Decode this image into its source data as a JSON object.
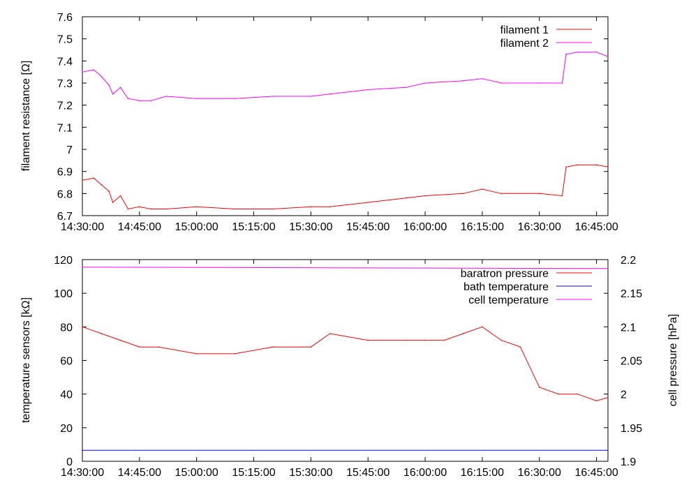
{
  "chart_data": [
    {
      "type": "line",
      "xlabel": "",
      "ylabel": "filament resistance [Ω]",
      "x_ticks": [
        "14:30:00",
        "14:45:00",
        "15:00:00",
        "15:15:00",
        "15:30:00",
        "15:45:00",
        "16:00:00",
        "16:15:00",
        "16:30:00",
        "16:45:00"
      ],
      "xlim": [
        "14:30:00",
        "16:48:00"
      ],
      "ylim": [
        6.7,
        7.6
      ],
      "y_ticks": [
        "6.7",
        "6.8",
        "6.9",
        "7",
        "7.1",
        "7.2",
        "7.3",
        "7.4",
        "7.5",
        "7.6"
      ],
      "legend_position": "top-right",
      "grid": false,
      "series": [
        {
          "name": "filament 1",
          "color": "#ff0000",
          "x": [
            "14:30:00",
            "14:33:00",
            "14:35:00",
            "14:37:00",
            "14:38:00",
            "14:40:00",
            "14:42:00",
            "14:45:00",
            "14:48:00",
            "14:52:00",
            "15:00:00",
            "15:10:00",
            "15:20:00",
            "15:30:00",
            "15:35:00",
            "15:45:00",
            "15:55:00",
            "16:00:00",
            "16:10:00",
            "16:15:00",
            "16:20:00",
            "16:30:00",
            "16:36:00",
            "16:37:00",
            "16:40:00",
            "16:45:00",
            "16:48:00"
          ],
          "values": [
            6.86,
            6.87,
            6.84,
            6.81,
            6.76,
            6.79,
            6.73,
            6.74,
            6.73,
            6.73,
            6.74,
            6.73,
            6.73,
            6.74,
            6.74,
            6.76,
            6.78,
            6.79,
            6.8,
            6.82,
            6.8,
            6.8,
            6.79,
            6.92,
            6.93,
            6.93,
            6.92
          ]
        },
        {
          "name": "filament 2",
          "color": "#ff00ff",
          "x": [
            "14:30:00",
            "14:33:00",
            "14:35:00",
            "14:37:00",
            "14:38:00",
            "14:40:00",
            "14:42:00",
            "14:45:00",
            "14:48:00",
            "14:52:00",
            "15:00:00",
            "15:10:00",
            "15:20:00",
            "15:30:00",
            "15:35:00",
            "15:45:00",
            "15:55:00",
            "16:00:00",
            "16:10:00",
            "16:15:00",
            "16:20:00",
            "16:30:00",
            "16:36:00",
            "16:37:00",
            "16:40:00",
            "16:45:00",
            "16:48:00"
          ],
          "values": [
            7.35,
            7.36,
            7.33,
            7.29,
            7.25,
            7.28,
            7.23,
            7.22,
            7.22,
            7.24,
            7.23,
            7.23,
            7.24,
            7.24,
            7.25,
            7.27,
            7.28,
            7.3,
            7.31,
            7.32,
            7.3,
            7.3,
            7.3,
            7.43,
            7.44,
            7.44,
            7.42
          ]
        }
      ]
    },
    {
      "type": "line",
      "xlabel": "",
      "ylabel": "temperature sensors [kΩ]",
      "y2label": "cell pressure [hPa]",
      "x_ticks": [
        "14:30:00",
        "14:45:00",
        "15:00:00",
        "15:15:00",
        "15:30:00",
        "15:45:00",
        "16:00:00",
        "16:15:00",
        "16:30:00",
        "16:45:00"
      ],
      "xlim": [
        "14:30:00",
        "16:48:00"
      ],
      "ylim": [
        0,
        120
      ],
      "y_ticks": [
        "0",
        "20",
        "40",
        "60",
        "80",
        "100",
        "120"
      ],
      "y2lim": [
        1.9,
        2.2
      ],
      "y2_ticks": [
        "1.9",
        "1.95",
        "2",
        "2.05",
        "2.1",
        "2.15",
        "2.2"
      ],
      "legend_position": "top-right",
      "grid": false,
      "series": [
        {
          "name": "baratron pressure",
          "color": "#ff0000",
          "axis": "y2",
          "x": [
            "14:30:00",
            "14:35:00",
            "14:40:00",
            "14:45:00",
            "14:50:00",
            "15:00:00",
            "15:10:00",
            "15:20:00",
            "15:30:00",
            "15:35:00",
            "15:45:00",
            "15:55:00",
            "16:00:00",
            "16:05:00",
            "16:10:00",
            "16:15:00",
            "16:20:00",
            "16:25:00",
            "16:30:00",
            "16:35:00",
            "16:40:00",
            "16:45:00",
            "16:48:00"
          ],
          "values": [
            2.1,
            2.09,
            2.08,
            2.07,
            2.07,
            2.06,
            2.06,
            2.07,
            2.07,
            2.09,
            2.08,
            2.08,
            2.08,
            2.08,
            2.09,
            2.1,
            2.08,
            2.07,
            2.01,
            2,
            2,
            1.99,
            1.995
          ]
        },
        {
          "name": "bath temperature",
          "color": "#0000ff",
          "axis": "y",
          "x": [
            "14:30:00",
            "16:48:00"
          ],
          "values": [
            6.5,
            6.5
          ]
        },
        {
          "name": "cell temperature",
          "color": "#ff00ff",
          "axis": "y",
          "x": [
            "14:30:00",
            "16:48:00"
          ],
          "values": [
            115.5,
            114.7
          ]
        }
      ]
    }
  ]
}
